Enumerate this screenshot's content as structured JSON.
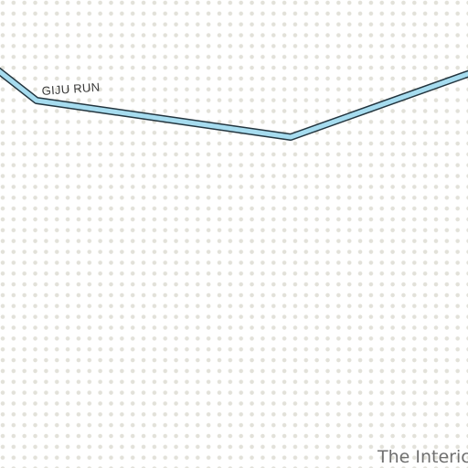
{
  "map": {
    "road": {
      "name": "GIJU RUN",
      "casing_color": "#23353f",
      "fill_color": "#a6dcef"
    },
    "region_label": "The Interic",
    "background": {
      "color": "#ffffff",
      "dot_color": "#e2e1d9"
    }
  }
}
